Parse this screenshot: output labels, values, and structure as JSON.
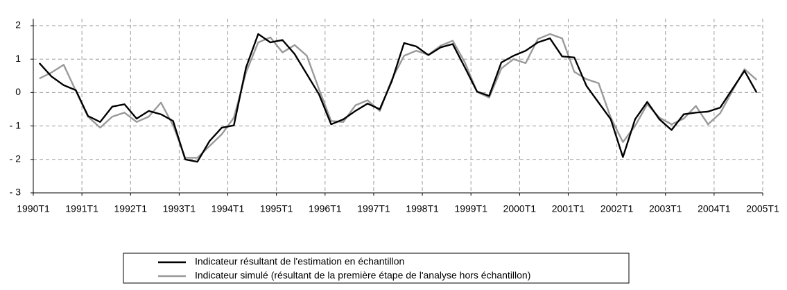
{
  "chart_data": {
    "type": "line",
    "x": [
      1990.125,
      1990.375,
      1990.625,
      1990.875,
      1991.125,
      1991.375,
      1991.625,
      1991.875,
      1992.125,
      1992.375,
      1992.625,
      1992.875,
      1993.125,
      1993.375,
      1993.625,
      1993.875,
      1994.125,
      1994.375,
      1994.625,
      1994.875,
      1995.125,
      1995.375,
      1995.625,
      1995.875,
      1996.125,
      1996.375,
      1996.625,
      1996.875,
      1997.125,
      1997.375,
      1997.625,
      1997.875,
      1998.125,
      1998.375,
      1998.625,
      1998.875,
      1999.125,
      1999.375,
      1999.625,
      1999.875,
      2000.125,
      2000.375,
      2000.625,
      2000.875,
      2001.125,
      2001.375,
      2001.625,
      2001.875,
      2002.125,
      2002.375,
      2002.625,
      2002.875,
      2003.125,
      2003.375,
      2003.625,
      2003.875,
      2004.125,
      2004.375,
      2004.625,
      2004.875
    ],
    "series": [
      {
        "name": "Indicateur résultant de l'estimation en échantillon",
        "color": "#000000",
        "values": [
          0.88,
          0.48,
          0.22,
          0.07,
          -0.7,
          -0.88,
          -0.42,
          -0.35,
          -0.78,
          -0.55,
          -0.65,
          -0.85,
          -2.0,
          -2.07,
          -1.45,
          -1.05,
          -0.98,
          0.75,
          1.75,
          1.5,
          1.57,
          1.15,
          0.55,
          -0.05,
          -0.95,
          -0.8,
          -0.55,
          -0.33,
          -0.5,
          0.35,
          1.48,
          1.38,
          1.12,
          1.35,
          1.45,
          0.75,
          0.03,
          -0.1,
          0.9,
          1.1,
          1.25,
          1.5,
          1.62,
          1.08,
          1.05,
          0.2,
          -0.3,
          -0.8,
          -1.93,
          -0.8,
          -0.28,
          -0.8,
          -1.12,
          -0.65,
          -0.6,
          -0.57,
          -0.45,
          0.1,
          0.65,
          0.0
        ]
      },
      {
        "name": "Indicateur simulé (résultant de la première étape de l'analyse hors échantillon)",
        "color": "#999999",
        "values": [
          0.42,
          0.6,
          0.83,
          0.05,
          -0.72,
          -1.05,
          -0.72,
          -0.6,
          -0.88,
          -0.72,
          -0.3,
          -0.98,
          -1.95,
          -1.95,
          -1.6,
          -1.25,
          -0.75,
          0.6,
          1.5,
          1.65,
          1.2,
          1.42,
          1.1,
          0.1,
          -0.85,
          -0.88,
          -0.38,
          -0.23,
          -0.55,
          0.4,
          1.1,
          1.25,
          1.13,
          1.4,
          1.55,
          0.9,
          0.02,
          -0.15,
          0.72,
          1.0,
          0.88,
          1.6,
          1.75,
          1.62,
          0.62,
          0.4,
          0.28,
          -0.75,
          -1.48,
          -1.0,
          -0.35,
          -0.75,
          -0.95,
          -0.78,
          -0.4,
          -0.95,
          -0.62,
          0.05,
          0.7,
          0.38
        ]
      }
    ],
    "xlim": [
      1990,
      2005
    ],
    "xticks": [
      {
        "value": 1990,
        "label": "1990T1"
      },
      {
        "value": 1991,
        "label": "1991T1"
      },
      {
        "value": 1992,
        "label": "1992T1"
      },
      {
        "value": 1993,
        "label": "1993T1"
      },
      {
        "value": 1994,
        "label": "1994T1"
      },
      {
        "value": 1995,
        "label": "1995T1"
      },
      {
        "value": 1996,
        "label": "1996T1"
      },
      {
        "value": 1997,
        "label": "1997T1"
      },
      {
        "value": 1998,
        "label": "1998T1"
      },
      {
        "value": 1999,
        "label": "1999T1"
      },
      {
        "value": 2000,
        "label": "2000T1"
      },
      {
        "value": 2001,
        "label": "2001T1"
      },
      {
        "value": 2002,
        "label": "2002T1"
      },
      {
        "value": 2003,
        "label": "2003T1"
      },
      {
        "value": 2004,
        "label": "2004T1"
      },
      {
        "value": 2005,
        "label": "2005T1"
      }
    ],
    "ylim": [
      -3,
      2
    ],
    "yticks": [
      2,
      1,
      0,
      {
        "value": -1,
        "label": "- 1"
      },
      {
        "value": -2,
        "label": "- 2"
      },
      {
        "value": -3,
        "label": "- 3"
      }
    ],
    "grid": true
  }
}
